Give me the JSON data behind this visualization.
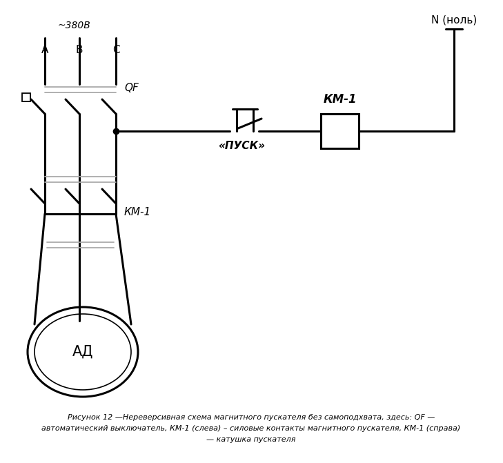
{
  "bg_color": "#ffffff",
  "line_color": "#000000",
  "gray_color": "#aaaaaa",
  "voltage_label": "~380В",
  "phase_A": "A",
  "phase_B": "B",
  "phase_C": "C",
  "neutral_label": "N (ноль)",
  "qf_label": "QF",
  "km1_left_label": "КМ-1",
  "km1_right_label": "КМ-1",
  "pusk_label": "«ПУСК»",
  "motor_label": "АД",
  "caption_line1": "Рисунок 12 —Нереверсивная схема магнитного пускателя без самоподхвата, здесь: QF —",
  "caption_line2": "автоматический выключатель, КМ-1 (слева) – силовые контакты магнитного пускателя, КМ-1 (справа)",
  "caption_line3": "— катушка пускателя"
}
